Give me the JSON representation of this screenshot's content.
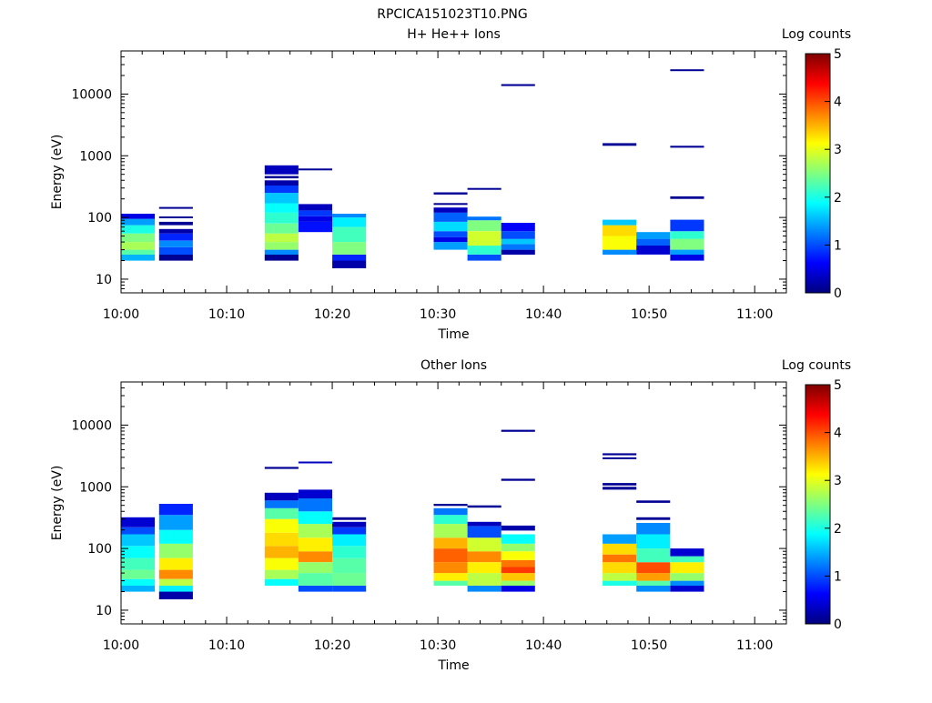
{
  "figure_title": "RPCICA151023T10.PNG",
  "chart_data": [
    {
      "type": "heatmap",
      "title": "H+ He++ Ions",
      "xlabel": "Time",
      "ylabel": "Energy (eV)",
      "x_ticks": [
        "10:00",
        "10:10",
        "10:20",
        "10:30",
        "10:40",
        "10:50",
        "11:00"
      ],
      "x_range_minutes": [
        0,
        63
      ],
      "y_scale": "log",
      "y_range": [
        6,
        50000
      ],
      "y_ticks": [
        10,
        100,
        1000,
        10000
      ],
      "y_tick_labels": [
        "10",
        "100",
        "1000",
        "10000"
      ],
      "colorbar": {
        "label": "Log counts",
        "range": [
          0,
          5
        ],
        "ticks": [
          "0",
          "1",
          "2",
          "3",
          "4",
          "5"
        ]
      },
      "cells": [
        [
          0.0,
          3.2,
          20,
          25,
          1.5
        ],
        [
          0.0,
          3.2,
          25,
          30,
          2.3
        ],
        [
          0.0,
          3.2,
          30,
          40,
          2.7
        ],
        [
          0.0,
          3.2,
          40,
          55,
          2.5
        ],
        [
          0.0,
          3.2,
          55,
          75,
          2.0
        ],
        [
          0.0,
          3.2,
          75,
          95,
          1.4
        ],
        [
          0.0,
          3.2,
          95,
          115,
          0.5
        ],
        [
          3.6,
          6.8,
          20,
          25,
          0.1
        ],
        [
          3.6,
          6.8,
          25,
          33,
          1.0
        ],
        [
          3.6,
          6.8,
          33,
          42,
          1.3
        ],
        [
          3.6,
          6.8,
          42,
          55,
          0.8
        ],
        [
          3.6,
          6.8,
          55,
          65,
          0.2
        ],
        [
          3.6,
          6.8,
          75,
          85,
          0.1
        ],
        [
          3.6,
          6.8,
          97,
          103,
          0.1
        ],
        [
          3.6,
          6.8,
          138,
          146,
          0.1
        ],
        [
          13.6,
          16.8,
          20,
          25,
          0.1
        ],
        [
          13.6,
          16.8,
          25,
          30,
          1.3
        ],
        [
          13.6,
          16.8,
          30,
          40,
          2.6
        ],
        [
          13.6,
          16.8,
          40,
          55,
          2.8
        ],
        [
          13.6,
          16.8,
          55,
          80,
          2.4
        ],
        [
          13.6,
          16.8,
          80,
          120,
          2.1
        ],
        [
          13.6,
          16.8,
          120,
          170,
          1.9
        ],
        [
          13.6,
          16.8,
          170,
          250,
          1.6
        ],
        [
          13.6,
          16.8,
          250,
          330,
          0.9
        ],
        [
          13.6,
          16.8,
          330,
          400,
          0.2
        ],
        [
          13.6,
          16.8,
          430,
          470,
          0.1
        ],
        [
          13.6,
          16.8,
          500,
          700,
          0.3
        ],
        [
          16.8,
          20.0,
          58,
          85,
          0.7
        ],
        [
          16.8,
          20.0,
          85,
          105,
          0.5
        ],
        [
          16.8,
          20.0,
          105,
          130,
          0.9
        ],
        [
          16.8,
          20.0,
          130,
          165,
          0.3
        ],
        [
          16.8,
          20.0,
          580,
          620,
          0.1
        ],
        [
          20.0,
          23.2,
          15,
          20,
          0.2
        ],
        [
          20.0,
          23.2,
          20,
          25,
          0.8
        ],
        [
          20.0,
          23.2,
          25,
          40,
          2.5
        ],
        [
          20.0,
          23.2,
          40,
          70,
          2.2
        ],
        [
          20.0,
          23.2,
          70,
          100,
          1.8
        ],
        [
          20.0,
          23.2,
          100,
          115,
          1.3
        ],
        [
          29.6,
          32.8,
          30,
          40,
          1.4
        ],
        [
          29.6,
          32.8,
          40,
          48,
          0.5
        ],
        [
          29.6,
          32.8,
          48,
          60,
          1.0
        ],
        [
          29.6,
          32.8,
          60,
          85,
          1.7
        ],
        [
          29.6,
          32.8,
          85,
          120,
          1.1
        ],
        [
          29.6,
          32.8,
          120,
          145,
          0.3
        ],
        [
          29.6,
          32.8,
          160,
          170,
          0.1
        ],
        [
          29.6,
          32.8,
          235,
          255,
          0.1
        ],
        [
          32.8,
          36.0,
          20,
          25,
          1.0
        ],
        [
          32.8,
          36.0,
          25,
          35,
          2.1
        ],
        [
          32.8,
          36.0,
          35,
          60,
          2.9
        ],
        [
          32.8,
          36.0,
          60,
          90,
          2.5
        ],
        [
          32.8,
          36.0,
          90,
          103,
          1.2
        ],
        [
          32.8,
          36.0,
          280,
          300,
          0.1
        ],
        [
          36.0,
          39.2,
          25,
          30,
          0.2
        ],
        [
          36.0,
          39.2,
          30,
          37,
          1.2
        ],
        [
          36.0,
          39.2,
          37,
          45,
          1.6
        ],
        [
          36.0,
          39.2,
          45,
          60,
          1.0
        ],
        [
          36.0,
          39.2,
          60,
          82,
          0.6
        ],
        [
          36.0,
          39.2,
          13500,
          14500,
          0.1
        ],
        [
          45.6,
          48.8,
          25,
          30,
          1.3
        ],
        [
          45.6,
          48.8,
          30,
          50,
          3.1
        ],
        [
          45.6,
          48.8,
          50,
          75,
          3.3
        ],
        [
          45.6,
          48.8,
          75,
          92,
          1.6
        ],
        [
          45.6,
          48.8,
          1450,
          1600,
          0.1
        ],
        [
          48.8,
          52.0,
          25,
          35,
          0.4
        ],
        [
          48.8,
          52.0,
          35,
          45,
          1.1
        ],
        [
          48.8,
          52.0,
          45,
          58,
          1.4
        ],
        [
          52.0,
          55.2,
          20,
          25,
          0.5
        ],
        [
          52.0,
          55.2,
          25,
          30,
          1.4
        ],
        [
          52.0,
          55.2,
          30,
          45,
          2.5
        ],
        [
          52.0,
          55.2,
          45,
          60,
          2.1
        ],
        [
          52.0,
          55.2,
          60,
          92,
          0.9
        ],
        [
          52.0,
          55.2,
          200,
          220,
          0.1
        ],
        [
          52.0,
          55.2,
          1350,
          1450,
          0.1
        ],
        [
          52.0,
          55.2,
          23500,
          25000,
          0.1
        ]
      ]
    },
    {
      "type": "heatmap",
      "title": "Other Ions",
      "xlabel": "Time",
      "ylabel": "Energy (eV)",
      "x_ticks": [
        "10:00",
        "10:10",
        "10:20",
        "10:30",
        "10:40",
        "10:50",
        "11:00"
      ],
      "x_range_minutes": [
        0,
        63
      ],
      "y_scale": "log",
      "y_range": [
        6,
        50000
      ],
      "y_ticks": [
        10,
        100,
        1000,
        10000
      ],
      "y_tick_labels": [
        "10",
        "100",
        "1000",
        "10000"
      ],
      "colorbar": {
        "label": "Log counts",
        "range": [
          0,
          5
        ],
        "ticks": [
          "0",
          "1",
          "2",
          "3",
          "4",
          "5"
        ]
      },
      "cells": [
        [
          0.0,
          3.2,
          20,
          25,
          1.5
        ],
        [
          0.0,
          3.2,
          25,
          32,
          1.9
        ],
        [
          0.0,
          3.2,
          32,
          45,
          2.4
        ],
        [
          0.0,
          3.2,
          45,
          70,
          2.2
        ],
        [
          0.0,
          3.2,
          70,
          110,
          1.9
        ],
        [
          0.0,
          3.2,
          110,
          170,
          1.6
        ],
        [
          0.0,
          3.2,
          170,
          220,
          1.0
        ],
        [
          0.0,
          3.2,
          220,
          320,
          0.4
        ],
        [
          3.6,
          6.8,
          15,
          20,
          0.2
        ],
        [
          3.6,
          6.8,
          20,
          25,
          1.8
        ],
        [
          3.6,
          6.8,
          25,
          32,
          2.8
        ],
        [
          3.6,
          6.8,
          32,
          45,
          3.7
        ],
        [
          3.6,
          6.8,
          45,
          70,
          3.2
        ],
        [
          3.6,
          6.8,
          70,
          120,
          2.6
        ],
        [
          3.6,
          6.8,
          120,
          200,
          1.9
        ],
        [
          3.6,
          6.8,
          200,
          350,
          1.4
        ],
        [
          3.6,
          6.8,
          350,
          530,
          0.8
        ],
        [
          13.6,
          16.8,
          25,
          32,
          1.9
        ],
        [
          13.6,
          16.8,
          32,
          45,
          2.7
        ],
        [
          13.6,
          16.8,
          45,
          70,
          3.1
        ],
        [
          13.6,
          16.8,
          70,
          110,
          3.5
        ],
        [
          13.6,
          16.8,
          110,
          180,
          3.3
        ],
        [
          13.6,
          16.8,
          180,
          300,
          3.1
        ],
        [
          13.6,
          16.8,
          300,
          450,
          2.3
        ],
        [
          13.6,
          16.8,
          450,
          600,
          1.2
        ],
        [
          13.6,
          16.8,
          600,
          800,
          0.3
        ],
        [
          13.6,
          16.8,
          1950,
          2100,
          0.1
        ],
        [
          16.8,
          20.0,
          20,
          25,
          1.0
        ],
        [
          16.8,
          20.0,
          25,
          40,
          2.3
        ],
        [
          16.8,
          20.0,
          40,
          60,
          2.6
        ],
        [
          16.8,
          20.0,
          60,
          90,
          3.7
        ],
        [
          16.8,
          20.0,
          90,
          150,
          3.2
        ],
        [
          16.8,
          20.0,
          150,
          250,
          2.7
        ],
        [
          16.8,
          20.0,
          250,
          400,
          1.9
        ],
        [
          16.8,
          20.0,
          400,
          650,
          1.2
        ],
        [
          16.8,
          20.0,
          650,
          900,
          0.4
        ],
        [
          16.8,
          20.0,
          2400,
          2550,
          0.3
        ],
        [
          20.0,
          23.2,
          20,
          25,
          1.0
        ],
        [
          20.0,
          23.2,
          25,
          40,
          2.4
        ],
        [
          20.0,
          23.2,
          40,
          70,
          2.3
        ],
        [
          20.0,
          23.2,
          70,
          110,
          2.1
        ],
        [
          20.0,
          23.2,
          110,
          170,
          1.8
        ],
        [
          20.0,
          23.2,
          170,
          220,
          0.9
        ],
        [
          20.0,
          23.2,
          220,
          270,
          0.3
        ],
        [
          20.0,
          23.2,
          290,
          320,
          0.1
        ],
        [
          29.6,
          32.8,
          25,
          30,
          2.3
        ],
        [
          29.6,
          32.8,
          30,
          40,
          3.2
        ],
        [
          29.6,
          32.8,
          40,
          60,
          3.7
        ],
        [
          29.6,
          32.8,
          60,
          100,
          3.9
        ],
        [
          29.6,
          32.8,
          100,
          150,
          3.5
        ],
        [
          29.6,
          32.8,
          150,
          250,
          2.7
        ],
        [
          29.6,
          32.8,
          250,
          350,
          2.1
        ],
        [
          29.6,
          32.8,
          350,
          450,
          1.2
        ],
        [
          29.6,
          32.8,
          490,
          530,
          0.1
        ],
        [
          32.8,
          36.0,
          20,
          25,
          1.3
        ],
        [
          32.8,
          36.0,
          25,
          40,
          2.8
        ],
        [
          32.8,
          36.0,
          40,
          60,
          3.2
        ],
        [
          32.8,
          36.0,
          60,
          90,
          3.7
        ],
        [
          32.8,
          36.0,
          90,
          150,
          2.9
        ],
        [
          32.8,
          36.0,
          150,
          230,
          1.0
        ],
        [
          32.8,
          36.0,
          230,
          270,
          0.3
        ],
        [
          32.8,
          36.0,
          460,
          500,
          0.1
        ],
        [
          36.0,
          39.2,
          20,
          25,
          0.5
        ],
        [
          36.0,
          39.2,
          25,
          30,
          2.6
        ],
        [
          36.0,
          39.2,
          30,
          40,
          3.4
        ],
        [
          36.0,
          39.2,
          40,
          50,
          4.1
        ],
        [
          36.0,
          39.2,
          50,
          65,
          3.8
        ],
        [
          36.0,
          39.2,
          65,
          90,
          3.1
        ],
        [
          36.0,
          39.2,
          90,
          120,
          2.6
        ],
        [
          36.0,
          39.2,
          120,
          170,
          1.9
        ],
        [
          36.0,
          39.2,
          195,
          235,
          0.2
        ],
        [
          36.0,
          39.2,
          1250,
          1350,
          0.1
        ],
        [
          36.0,
          39.2,
          7800,
          8400,
          0.1
        ],
        [
          45.6,
          48.8,
          25,
          30,
          2.0
        ],
        [
          45.6,
          48.8,
          30,
          40,
          2.8
        ],
        [
          45.6,
          48.8,
          40,
          60,
          3.3
        ],
        [
          45.6,
          48.8,
          60,
          80,
          3.8
        ],
        [
          45.6,
          48.8,
          80,
          120,
          3.3
        ],
        [
          45.6,
          48.8,
          120,
          170,
          1.4
        ],
        [
          45.6,
          48.8,
          900,
          1000,
          0.1
        ],
        [
          45.6,
          48.8,
          1050,
          1150,
          0.1
        ],
        [
          45.6,
          48.8,
          2800,
          3000,
          0.1
        ],
        [
          45.6,
          48.8,
          3250,
          3500,
          0.1
        ],
        [
          48.8,
          52.0,
          20,
          25,
          1.3
        ],
        [
          48.8,
          52.0,
          25,
          30,
          2.3
        ],
        [
          48.8,
          52.0,
          30,
          40,
          3.6
        ],
        [
          48.8,
          52.0,
          40,
          60,
          4.0
        ],
        [
          48.8,
          52.0,
          60,
          100,
          2.2
        ],
        [
          48.8,
          52.0,
          100,
          170,
          1.8
        ],
        [
          48.8,
          52.0,
          170,
          260,
          1.3
        ],
        [
          48.8,
          52.0,
          290,
          320,
          0.1
        ],
        [
          48.8,
          52.0,
          550,
          600,
          0.1
        ],
        [
          52.0,
          55.2,
          20,
          25,
          0.4
        ],
        [
          52.0,
          55.2,
          25,
          30,
          1.3
        ],
        [
          52.0,
          55.2,
          30,
          40,
          2.6
        ],
        [
          52.0,
          55.2,
          40,
          60,
          3.2
        ],
        [
          52.0,
          55.2,
          60,
          75,
          2.2
        ],
        [
          52.0,
          55.2,
          75,
          100,
          0.4
        ]
      ]
    }
  ]
}
